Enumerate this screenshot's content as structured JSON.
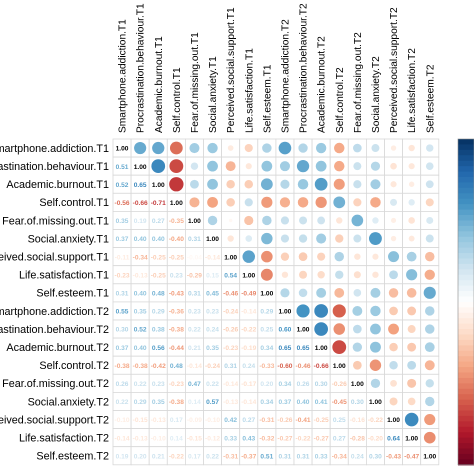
{
  "chart_data": {
    "type": "heatmap",
    "variables": [
      "Smartphone.addiction.T1",
      "Procrastination.behaviour.T1",
      "Academic.burnout.T1",
      "Self.control.T1",
      "Fear.of.missing.out.T1",
      "Social.anxiety.T1",
      "Perceived.social.support.T1",
      "Life.satisfaction.T1",
      "Self.esteem.T1",
      "Smartphone.addiction.T2",
      "Procrastination.behaviour.T2",
      "Academic.burnout.T2",
      "Self.control.T2",
      "Fear.of.missing.out.T2",
      "Social.anxiety.T2",
      "Perceived.social.support.T2",
      "Life.satisfaction.T2",
      "Self.esteem.T2"
    ],
    "row_labels": [
      "martphone.addiction.T1",
      "rastination.behaviour.T1",
      "Academic.burnout.T1",
      "Self.control.T1",
      "Fear.of.missing.out.T1",
      "Social.anxiety.T1",
      "erceived.social.support.T1",
      "Life.satisfaction.T1",
      "Self.esteem.T1",
      "martphone.addiction.T2",
      "rastination.behaviour.T2",
      "Academic.burnout.T2",
      "Self.control.T2",
      "Fear.of.missing.out.T2",
      "Social.anxiety.T2",
      "erceived.social.support.T2",
      "Life.satisfaction.T2",
      "Self.esteem.T2"
    ],
    "lower_triangle_labels": [
      [
        "1.00"
      ],
      [
        "0.51",
        "1.00"
      ],
      [
        "0.52",
        "0.65",
        "1.00"
      ],
      [
        "-0.56",
        "-0.66",
        "-0.71",
        "1.00"
      ],
      [
        "0.35",
        "0.19",
        "0.27",
        "-0.35",
        "1.00"
      ],
      [
        "0.37",
        "0.40",
        "0.40",
        "-0.40",
        "0.31",
        "1.00"
      ],
      [
        "-0.11",
        "-0.34",
        "-0.25",
        "-0.25",
        "-0.04",
        "-0.14",
        "1.00"
      ],
      [
        "-0.23",
        "-0.13",
        "-0.25",
        "0.23",
        "-0.29",
        "0.15",
        "0.54",
        "1.00"
      ],
      [
        "0.31",
        "0.40",
        "0.48",
        "-0.43",
        "0.31",
        "0.45",
        "-0.46",
        "-0.49",
        "1.00"
      ],
      [
        "0.55",
        "0.35",
        "0.29",
        "-0.36",
        "0.23",
        "0.23",
        "-0.24",
        "-0.14",
        "0.29",
        "1.00"
      ],
      [
        "0.30",
        "0.52",
        "0.38",
        "-0.38",
        "0.22",
        "0.24",
        "-0.26",
        "-0.22",
        "0.25",
        "0.60",
        "1.00"
      ],
      [
        "0.37",
        "0.40",
        "0.56",
        "-0.44",
        "0.21",
        "0.35",
        "-0.23",
        "-0.19",
        "0.34",
        "0.65",
        "0.65",
        "1.00"
      ],
      [
        "-0.38",
        "-0.38",
        "-0.42",
        "0.48",
        "-0.14",
        "-0.24",
        "0.31",
        "0.24",
        "-0.33",
        "-0.60",
        "-0.46",
        "-0.66",
        "1.00"
      ],
      [
        "0.26",
        "0.22",
        "0.23",
        "-0.23",
        "0.47",
        "0.22",
        "-0.14",
        "-0.17",
        "0.20",
        "0.34",
        "0.26",
        "0.30",
        "-0.26",
        "1.00"
      ],
      [
        "0.22",
        "0.29",
        "0.35",
        "-0.38",
        "0.14",
        "0.57",
        "-0.13",
        "-0.14",
        "0.34",
        "0.37",
        "0.40",
        "0.41",
        "-0.45",
        "0.30",
        "1.00"
      ],
      [
        "-0.10",
        "-0.15",
        "-0.13",
        "0.17",
        "-0.09",
        "-0.10",
        "0.42",
        "0.27",
        "-0.31",
        "-0.26",
        "-0.41",
        "-0.25",
        "0.25",
        "-0.16",
        "-0.22",
        "1.00"
      ],
      [
        "-0.14",
        "-0.13",
        "-0.10",
        "0.14",
        "-0.15",
        "-0.12",
        "0.33",
        "0.43",
        "-0.32",
        "-0.27",
        "-0.22",
        "-0.27",
        "0.27",
        "-0.28",
        "-0.20",
        "0.64",
        "1.00"
      ],
      [
        "0.19",
        "0.20",
        "0.21",
        "-0.22",
        "0.17",
        "0.22",
        "-0.31",
        "-0.37",
        "0.51",
        "0.31",
        "0.31",
        "0.33",
        "-0.34",
        "0.24",
        "0.30",
        "-0.43",
        "-0.47",
        "1.00"
      ]
    ],
    "upper_triangle": "circles sized and colored by |r|, mirroring the lower triangle",
    "colorbar_range": [
      -1,
      1
    ],
    "colors": {
      "negative": "#67001f",
      "mid": "#ffffff",
      "positive": "#053061"
    }
  }
}
